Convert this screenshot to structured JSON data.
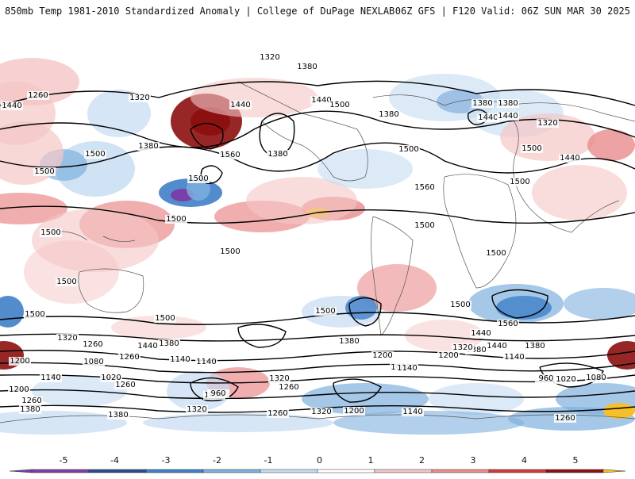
{
  "header": {
    "title": "850mb Temp 1981-2010 Standardized Anomaly | College of DuPage NEXLAB",
    "run_info": "06Z GFS | F120 Valid: 06Z SUN MAR 30 2025"
  },
  "colorbar": {
    "ticks": [
      "-5",
      "-4",
      "-3",
      "-2",
      "-1",
      "0",
      "1",
      "2",
      "3",
      "4",
      "5"
    ],
    "colors": [
      "#7b3fa8",
      "#2b4c8c",
      "#3f80c8",
      "#7fb0de",
      "#c4dcf2",
      "#ffffff",
      "#f5c6c6",
      "#e98c8c",
      "#d13a3a",
      "#8c1010",
      "#f6c02a"
    ]
  },
  "contour_labels": [
    "1320",
    "1380",
    "1440",
    "1260",
    "1320",
    "1380",
    "1440",
    "1500",
    "1560",
    "1380",
    "1500",
    "1440",
    "1500",
    "1380",
    "1440",
    "1380",
    "1440",
    "1380",
    "1320",
    "1500",
    "1440",
    "1500",
    "1500",
    "1560",
    "1500",
    "1500",
    "1500",
    "1500",
    "1500",
    "1500",
    "1500",
    "1500",
    "1500",
    "1500",
    "1500",
    "1560",
    "1440",
    "1380",
    "1320",
    "1260",
    "1440",
    "1380",
    "1200",
    "1140",
    "1080",
    "1020",
    "1260",
    "1140",
    "1020",
    "960",
    "1320",
    "1260",
    "1200",
    "1140",
    "1200",
    "1080",
    "1140",
    "960",
    "1020",
    "1080",
    "1200",
    "1140",
    "1260",
    "1320",
    "1380",
    "1380",
    "1320",
    "1260",
    "1200",
    "1140",
    "1260",
    "1380",
    "1440",
    "1380",
    "1320",
    "1260"
  ]
}
